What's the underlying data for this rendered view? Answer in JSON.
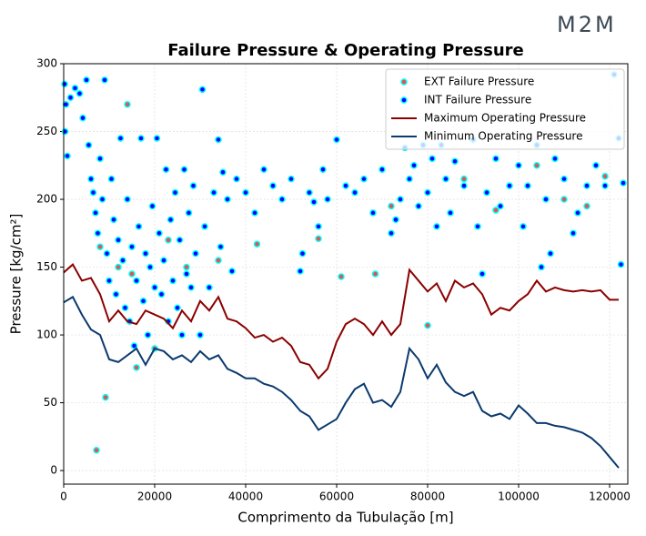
{
  "logo": "M2M",
  "chart_data": {
    "type": "combo",
    "title": "Failure Pressure & Operating Pressure",
    "x_label": "Comprimento da Tubulação [m]",
    "y_label": "Pressure [kg/cm²]",
    "xlim": [
      0,
      124000
    ],
    "ylim": [
      -10,
      300
    ],
    "xticks": [
      0,
      20000,
      40000,
      60000,
      80000,
      100000,
      120000
    ],
    "yticks": [
      0,
      50,
      100,
      150,
      200,
      250,
      300
    ],
    "grid": true,
    "legend": "upper right",
    "series": [
      {
        "name": "EXT Failure Pressure",
        "type": "scatter",
        "color": "#e8504a",
        "edge": "#00ffff",
        "x": [
          7200,
          9200,
          14000,
          16000,
          8000,
          12000,
          15000,
          20000,
          30000,
          34000,
          42500,
          56000,
          61000,
          68500,
          80000,
          72000,
          88000,
          95000,
          98000,
          104000,
          110000,
          115000,
          119000,
          23000,
          27000
        ],
        "values": [
          15,
          54,
          270,
          76,
          165,
          150,
          145,
          90,
          100,
          155,
          167,
          171,
          143,
          145,
          107,
          195,
          215,
          192,
          210,
          225,
          200,
          195,
          217,
          170,
          150
        ]
      },
      {
        "name": "INT Failure Pressure",
        "type": "scatter",
        "color": "#0000ff",
        "edge": "#00ffff",
        "x": [
          200,
          500,
          300,
          800,
          1500,
          2500,
          3500,
          4200,
          5000,
          5500,
          6000,
          6500,
          7000,
          7500,
          8000,
          8500,
          9000,
          9500,
          10000,
          10500,
          11000,
          11500,
          12000,
          12500,
          13000,
          13500,
          14000,
          14500,
          15000,
          15500,
          16000,
          16500,
          17000,
          17500,
          18000,
          18500,
          19000,
          19500,
          20000,
          20500,
          21000,
          21500,
          22000,
          22500,
          23000,
          23500,
          24000,
          24500,
          25000,
          25500,
          26000,
          26500,
          27000,
          27500,
          28000,
          28500,
          29000,
          30000,
          30500,
          31000,
          32000,
          33000,
          34000,
          34500,
          35000,
          36000,
          37000,
          38000,
          40000,
          42000,
          44000,
          46000,
          48000,
          50000,
          52000,
          52500,
          54000,
          55000,
          56000,
          57000,
          58000,
          60000,
          62000,
          64000,
          66000,
          68000,
          70000,
          72000,
          73000,
          74000,
          75000,
          76000,
          77000,
          78000,
          79000,
          80000,
          81000,
          82000,
          83000,
          84000,
          85000,
          86000,
          88000,
          90000,
          91000,
          92000,
          93000,
          95000,
          96000,
          98000,
          100000,
          101000,
          102000,
          104000,
          105000,
          106000,
          107000,
          108000,
          110000,
          112000,
          113000,
          115000,
          117000,
          119000,
          121000,
          122000,
          122500,
          123000
        ],
        "values": [
          285,
          270,
          250,
          232,
          275,
          282,
          278,
          260,
          288,
          240,
          215,
          205,
          190,
          175,
          230,
          200,
          288,
          160,
          140,
          215,
          185,
          130,
          170,
          245,
          155,
          120,
          200,
          110,
          165,
          92,
          140,
          180,
          245,
          125,
          160,
          100,
          150,
          195,
          135,
          245,
          175,
          130,
          155,
          222,
          110,
          185,
          140,
          205,
          120,
          170,
          100,
          222,
          145,
          190,
          135,
          210,
          160,
          100,
          281,
          180,
          135,
          205,
          244,
          165,
          220,
          200,
          147,
          215,
          205,
          190,
          222,
          210,
          200,
          215,
          147,
          160,
          205,
          198,
          180,
          222,
          200,
          244,
          210,
          205,
          215,
          190,
          222,
          175,
          185,
          200,
          238,
          215,
          225,
          195,
          240,
          205,
          230,
          180,
          240,
          215,
          190,
          228,
          210,
          244,
          180,
          145,
          205,
          230,
          195,
          210,
          225,
          180,
          210,
          240,
          150,
          200,
          160,
          230,
          215,
          175,
          190,
          210,
          225,
          210,
          292,
          245,
          152,
          212
        ]
      },
      {
        "name": "Maximum Operating Pressure",
        "type": "line",
        "color": "#8b0000",
        "x": [
          0,
          2000,
          4000,
          6000,
          8000,
          10000,
          12000,
          14000,
          16000,
          18000,
          20000,
          22000,
          24000,
          26000,
          28000,
          30000,
          32000,
          34000,
          36000,
          38000,
          40000,
          42000,
          44000,
          46000,
          48000,
          50000,
          52000,
          54000,
          56000,
          58000,
          60000,
          62000,
          64000,
          66000,
          68000,
          70000,
          72000,
          74000,
          76000,
          78000,
          80000,
          82000,
          84000,
          86000,
          88000,
          90000,
          92000,
          94000,
          96000,
          98000,
          100000,
          102000,
          104000,
          106000,
          108000,
          110000,
          112000,
          114000,
          116000,
          118000,
          120000,
          122000
        ],
        "values": [
          146,
          152,
          140,
          142,
          130,
          110,
          118,
          110,
          108,
          118,
          115,
          112,
          105,
          118,
          110,
          125,
          118,
          128,
          112,
          110,
          105,
          98,
          100,
          95,
          98,
          92,
          80,
          78,
          68,
          75,
          95,
          108,
          112,
          108,
          100,
          110,
          100,
          108,
          148,
          140,
          132,
          138,
          125,
          140,
          135,
          138,
          130,
          115,
          120,
          118,
          125,
          130,
          140,
          132,
          135,
          133,
          132,
          133,
          132,
          133,
          126,
          126
        ]
      },
      {
        "name": "Minimum Operating Pressure",
        "type": "line",
        "color": "#0b3a6e",
        "x": [
          0,
          2000,
          4000,
          6000,
          8000,
          10000,
          12000,
          14000,
          16000,
          18000,
          20000,
          22000,
          24000,
          26000,
          28000,
          30000,
          32000,
          34000,
          36000,
          38000,
          40000,
          42000,
          44000,
          46000,
          48000,
          50000,
          52000,
          54000,
          56000,
          58000,
          60000,
          62000,
          64000,
          66000,
          68000,
          70000,
          72000,
          74000,
          76000,
          78000,
          80000,
          82000,
          84000,
          86000,
          88000,
          90000,
          92000,
          94000,
          96000,
          98000,
          100000,
          102000,
          104000,
          106000,
          108000,
          110000,
          112000,
          114000,
          116000,
          118000,
          120000,
          122000
        ],
        "values": [
          124,
          128,
          115,
          104,
          100,
          82,
          80,
          85,
          90,
          78,
          90,
          88,
          82,
          85,
          80,
          88,
          82,
          85,
          75,
          72,
          68,
          68,
          64,
          62,
          58,
          52,
          44,
          40,
          30,
          34,
          38,
          50,
          60,
          64,
          50,
          52,
          47,
          58,
          90,
          82,
          68,
          78,
          65,
          58,
          55,
          58,
          44,
          40,
          42,
          38,
          48,
          42,
          35,
          35,
          33,
          32,
          30,
          28,
          24,
          18,
          10,
          2
        ]
      }
    ]
  }
}
